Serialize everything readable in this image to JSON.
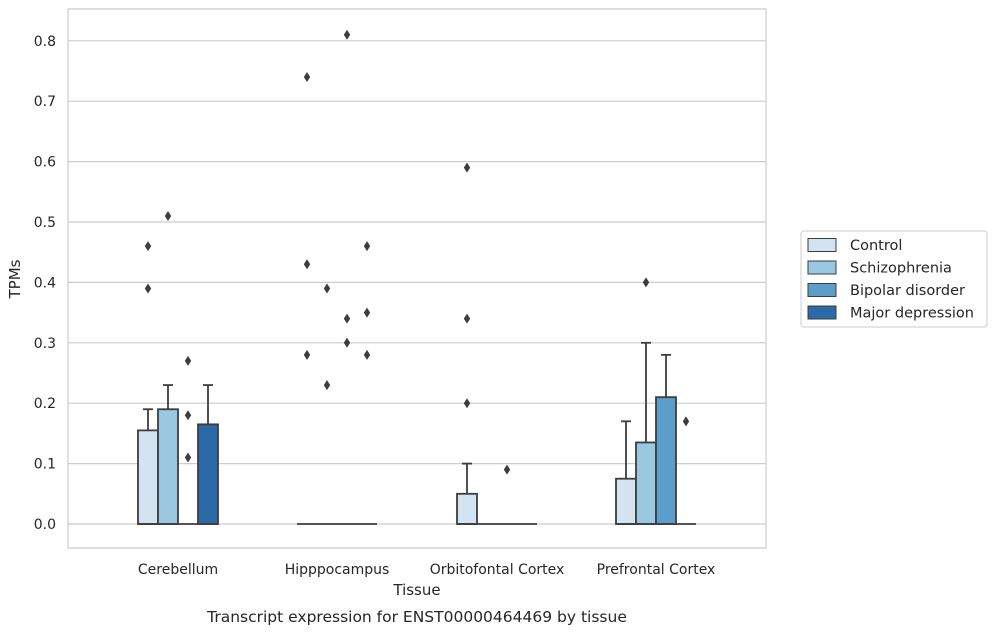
{
  "caption": "Transcript expression for ENST00000464469 by tissue",
  "chart_data": {
    "type": "bar",
    "subtype": "boxplot",
    "xlabel": "Tissue",
    "ylabel": "TPMs",
    "ylim": [
      -0.04,
      0.85
    ],
    "yticks": [
      "0.0",
      "0.1",
      "0.2",
      "0.3",
      "0.4",
      "0.5",
      "0.6",
      "0.7",
      "0.8"
    ],
    "grid": true,
    "legend_position": "right",
    "categories": [
      "Cerebellum",
      "Hipppocampus",
      "Orbitofontal Cortex",
      "Prefrontal Cortex"
    ],
    "series": [
      {
        "name": "Control",
        "color": "#d3e3f1",
        "boxes": [
          {
            "q1": 0,
            "q3": 0.155,
            "median": 0,
            "whisker_low": 0,
            "whisker_high": 0.19,
            "outliers": [
              0.46,
              0.39
            ]
          },
          {
            "q1": 0,
            "q3": 0,
            "median": 0,
            "whisker_low": 0,
            "whisker_high": 0,
            "outliers": [
              0.74,
              0.43,
              0.28
            ]
          },
          {
            "q1": 0,
            "q3": 0.05,
            "median": 0,
            "whisker_low": 0,
            "whisker_high": 0.1,
            "outliers": [
              0.59,
              0.34,
              0.2
            ]
          },
          {
            "q1": 0,
            "q3": 0.075,
            "median": 0,
            "whisker_low": 0,
            "whisker_high": 0.17,
            "outliers": []
          }
        ]
      },
      {
        "name": "Schizophrenia",
        "color": "#9ac8e0",
        "boxes": [
          {
            "q1": 0,
            "q3": 0.19,
            "median": 0,
            "whisker_low": 0,
            "whisker_high": 0.23,
            "outliers": [
              0.51
            ]
          },
          {
            "q1": 0,
            "q3": 0,
            "median": 0,
            "whisker_low": 0,
            "whisker_high": 0,
            "outliers": [
              0.39,
              0.23
            ]
          },
          {
            "q1": 0,
            "q3": 0,
            "median": 0,
            "whisker_low": 0,
            "whisker_high": 0,
            "outliers": []
          },
          {
            "q1": 0,
            "q3": 0.135,
            "median": 0,
            "whisker_low": 0,
            "whisker_high": 0.3,
            "outliers": [
              0.4
            ]
          }
        ]
      },
      {
        "name": "Bipolar disorder",
        "color": "#5a9ec9",
        "boxes": [
          {
            "q1": 0,
            "q3": 0,
            "median": 0,
            "whisker_low": 0,
            "whisker_high": 0,
            "outliers": [
              0.27,
              0.18,
              0.11
            ]
          },
          {
            "q1": 0,
            "q3": 0,
            "median": 0,
            "whisker_low": 0,
            "whisker_high": 0,
            "outliers": [
              0.81,
              0.34,
              0.3
            ]
          },
          {
            "q1": 0,
            "q3": 0,
            "median": 0,
            "whisker_low": 0,
            "whisker_high": 0,
            "outliers": [
              0.09
            ]
          },
          {
            "q1": 0,
            "q3": 0.21,
            "median": 0,
            "whisker_low": 0,
            "whisker_high": 0.28,
            "outliers": []
          }
        ]
      },
      {
        "name": "Major depression",
        "color": "#2c69a7",
        "boxes": [
          {
            "q1": 0,
            "q3": 0.165,
            "median": 0,
            "whisker_low": 0,
            "whisker_high": 0.23,
            "outliers": []
          },
          {
            "q1": 0,
            "q3": 0,
            "median": 0,
            "whisker_low": 0,
            "whisker_high": 0,
            "outliers": [
              0.46,
              0.35,
              0.28
            ]
          },
          {
            "q1": 0,
            "q3": 0,
            "median": 0,
            "whisker_low": 0,
            "whisker_high": 0,
            "outliers": []
          },
          {
            "q1": 0,
            "q3": 0,
            "median": 0,
            "whisker_low": 0,
            "whisker_high": 0,
            "outliers": [
              0.17
            ]
          }
        ]
      }
    ],
    "colors": {
      "grid": "#cccccc",
      "frame": "#cccccc",
      "box_edge": "#3d3d3d",
      "outlier": "#3d3d3d"
    }
  }
}
